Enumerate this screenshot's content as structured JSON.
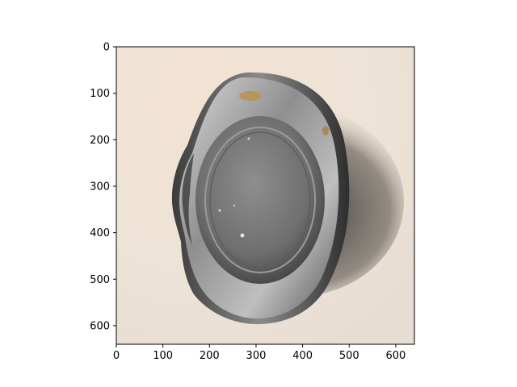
{
  "figure": {
    "image_subject": "dented-tin-can-top-view",
    "axes": {
      "xlim": [
        0,
        640
      ],
      "ylim": [
        0,
        640
      ],
      "y_inverted": true,
      "x_ticks": [
        0,
        100,
        200,
        300,
        400,
        500,
        600
      ],
      "y_ticks": [
        0,
        100,
        200,
        300,
        400,
        500,
        600
      ]
    },
    "colors": {
      "background": "#efe3d6",
      "can_rim": "#8b8b8b",
      "can_lid": "#7c7c7c",
      "shadow": "#2b2b2b"
    }
  }
}
